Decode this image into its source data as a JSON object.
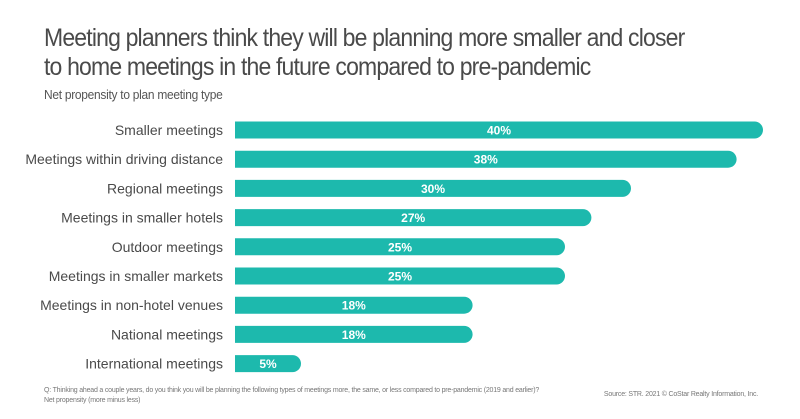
{
  "header": {
    "title_line1": "Meeting planners think they will be planning more smaller and closer",
    "title_line2": "to home meetings in the future compared to pre-pandemic",
    "subtitle": "Net propensity to plan meeting type"
  },
  "footer": {
    "question": "Q: Thinking ahead a couple years, do you think you will be planning the following types of meetings more, the same, or less compared to pre-pandemic (2019 and earlier)?",
    "note": "Net propensity (more minus less)",
    "source": "Source: STR. 2021 © CoStar Realty Information, Inc."
  },
  "colors": {
    "bar": "#1db9ad",
    "label_text": "#4a4a4a",
    "value_text": "#ffffff"
  },
  "chart_data": {
    "type": "bar",
    "orientation": "horizontal",
    "title": "Meeting planners think they will be planning more smaller and closer to home meetings in the future compared to pre-pandemic",
    "subtitle": "Net propensity to plan meeting type",
    "xlabel": "",
    "ylabel": "",
    "xlim": [
      0,
      40
    ],
    "grid": false,
    "legend": "none",
    "categories": [
      "Smaller meetings",
      "Meetings within driving distance",
      "Regional meetings",
      "Meetings in smaller hotels",
      "Outdoor meetings",
      "Meetings in smaller markets",
      "Meetings in non-hotel venues",
      "National meetings",
      "International meetings"
    ],
    "values": [
      40,
      38,
      30,
      27,
      25,
      25,
      18,
      18,
      5
    ],
    "value_labels": [
      "40%",
      "38%",
      "30%",
      "27%",
      "25%",
      "25%",
      "18%",
      "18%",
      "5%"
    ]
  }
}
